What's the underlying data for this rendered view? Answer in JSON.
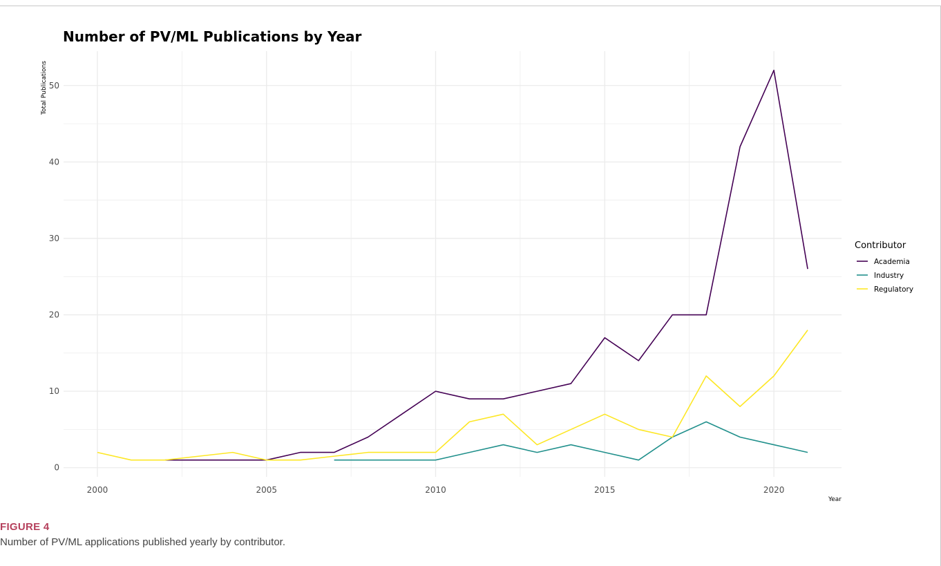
{
  "colors": {
    "Academia": "#440154",
    "Industry": "#21908c",
    "Regulatory": "#fde725",
    "grid": "#ebebeb",
    "figure_label": "#b5405c"
  },
  "chart_data": {
    "type": "line",
    "title": "Number of PV/ML Publications by Year",
    "xlabel": "Year",
    "ylabel": "Total Publications",
    "xlim": [
      1999.0,
      2022.0
    ],
    "ylim": [
      -1.2,
      54.5
    ],
    "x_ticks": [
      2000,
      2005,
      2010,
      2015,
      2020
    ],
    "y_ticks": [
      0,
      10,
      20,
      30,
      40,
      50
    ],
    "grid": true,
    "legend": {
      "title": "Contributor",
      "position": "right"
    },
    "series": [
      {
        "name": "Academia",
        "x": [
          2002,
          2003,
          2004,
          2005,
          2006,
          2007,
          2008,
          2009,
          2010,
          2011,
          2012,
          2013,
          2014,
          2015,
          2016,
          2017,
          2018,
          2019,
          2020,
          2021
        ],
        "y": [
          1,
          1,
          1,
          1,
          2,
          2,
          4,
          7,
          10,
          9,
          9,
          10,
          11,
          17,
          14,
          20,
          20,
          42,
          52,
          26
        ]
      },
      {
        "name": "Industry",
        "x": [
          2007,
          2008,
          2009,
          2010,
          2011,
          2012,
          2013,
          2014,
          2015,
          2016,
          2017,
          2018,
          2019,
          2020,
          2021
        ],
        "y": [
          1,
          1,
          1,
          1,
          2,
          3,
          2,
          3,
          2,
          1,
          4,
          6,
          4,
          3,
          2
        ]
      },
      {
        "name": "Regulatory",
        "x": [
          2000,
          2001,
          2002,
          2003,
          2004,
          2005,
          2006,
          2007,
          2008,
          2009,
          2010,
          2011,
          2012,
          2013,
          2014,
          2015,
          2016,
          2017,
          2018,
          2019,
          2020,
          2021
        ],
        "y": [
          2,
          1,
          1,
          1.5,
          2,
          1,
          1,
          1.5,
          2,
          2,
          2,
          6,
          7,
          3,
          5,
          7,
          5,
          4,
          12,
          8,
          12,
          18
        ]
      }
    ]
  },
  "caption": {
    "figure_label": "FIGURE 4",
    "text": "Number of PV/ML applications published yearly by contributor."
  }
}
